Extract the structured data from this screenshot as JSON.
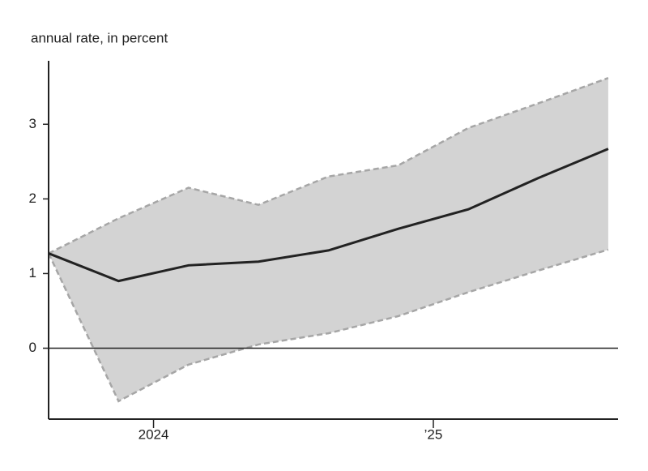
{
  "chart_data": {
    "type": "fan",
    "y_label": "annual rate, in percent",
    "x": [
      2023.625,
      2023.875,
      2024.125,
      2024.375,
      2024.625,
      2024.875,
      2025.125,
      2025.375,
      2025.625
    ],
    "values": [
      1.27,
      0.9,
      1.11,
      1.16,
      1.31,
      1.6,
      1.86,
      2.28,
      2.67
    ],
    "upper": [
      1.27,
      1.74,
      2.15,
      1.92,
      2.3,
      2.45,
      2.95,
      3.28,
      3.62
    ],
    "lower": [
      1.27,
      -0.71,
      -0.22,
      0.05,
      0.2,
      0.43,
      0.75,
      1.04,
      1.32
    ],
    "color": "#222222",
    "band_color": "#d3d3d3",
    "band_edge_color": "#a6a6a6",
    "xlim": [
      2023.625,
      2025.66
    ],
    "xticks": [
      2024,
      {
        "value": 2025,
        "label": "’25"
      }
    ],
    "ylim": [
      -0.95,
      3.85
    ],
    "yticks": [
      0,
      1,
      2,
      3
    ]
  }
}
